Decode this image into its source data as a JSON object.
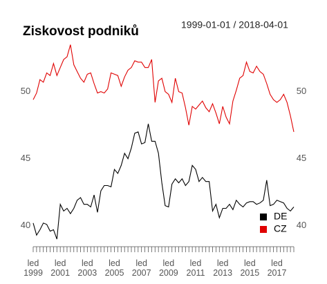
{
  "chart_data": {
    "type": "line",
    "title": "Ziskovost podniků",
    "subtitle": "1999-01-01 / 2018-04-01",
    "categories": [
      "led\n1999",
      null,
      null,
      null,
      null,
      null,
      null,
      null,
      "led\n2001",
      null,
      null,
      null,
      null,
      null,
      null,
      null,
      "led\n2003",
      null,
      null,
      null,
      null,
      null,
      null,
      null,
      "led\n2005",
      null,
      null,
      null,
      null,
      null,
      null,
      null,
      "led\n2007",
      null,
      null,
      null,
      null,
      null,
      null,
      null,
      "led\n2009",
      null,
      null,
      null,
      null,
      null,
      null,
      null,
      "led\n2011",
      null,
      null,
      null,
      null,
      null,
      null,
      null,
      "led\n2013",
      null,
      null,
      null,
      null,
      null,
      null,
      null,
      "led\n2015",
      null,
      null,
      null,
      null,
      null,
      null,
      null,
      "led\n2017",
      null,
      null,
      null,
      null,
      null
    ],
    "series": [
      {
        "name": "DE",
        "color": "#000000",
        "values": [
          40.2,
          39.3,
          39.7,
          40.2,
          40.1,
          39.6,
          39.7,
          39.0,
          41.6,
          41.1,
          41.3,
          40.9,
          41.3,
          41.9,
          42.1,
          41.6,
          41.6,
          41.4,
          42.3,
          41.0,
          42.6,
          43.0,
          43.0,
          42.9,
          44.2,
          43.9,
          44.5,
          45.4,
          45.0,
          45.8,
          46.9,
          47.0,
          46.1,
          46.2,
          47.6,
          46.3,
          46.3,
          45.4,
          43.2,
          41.5,
          41.4,
          43.1,
          43.5,
          43.2,
          43.5,
          43.0,
          43.3,
          44.5,
          44.2,
          43.3,
          43.6,
          43.3,
          43.3,
          41.1,
          41.6,
          40.6,
          41.3,
          41.3,
          41.6,
          41.2,
          41.9,
          41.6,
          41.4,
          41.7,
          41.8,
          41.8,
          41.6,
          41.7,
          41.9,
          43.4,
          41.5,
          41.6,
          41.9,
          41.8,
          41.7,
          41.3,
          41.1,
          41.4
        ]
      },
      {
        "name": "CZ",
        "color": "#e00000",
        "values": [
          49.4,
          49.9,
          50.9,
          50.7,
          51.4,
          51.2,
          52.1,
          51.2,
          51.8,
          52.4,
          52.6,
          53.5,
          52.0,
          51.5,
          51.0,
          50.7,
          51.3,
          51.4,
          50.6,
          49.9,
          50.0,
          49.9,
          50.2,
          51.4,
          51.3,
          51.2,
          50.4,
          51.1,
          51.6,
          51.8,
          52.3,
          52.2,
          52.2,
          51.8,
          51.8,
          52.4,
          49.2,
          50.8,
          51.0,
          50.0,
          49.8,
          49.2,
          51.0,
          50.0,
          49.9,
          48.8,
          47.5,
          48.9,
          48.7,
          49.0,
          49.3,
          48.8,
          48.5,
          49.1,
          48.4,
          47.6,
          48.9,
          48.1,
          47.6,
          49.3,
          50.1,
          51.0,
          51.2,
          52.2,
          51.5,
          51.4,
          51.9,
          51.5,
          51.3,
          50.6,
          49.8,
          49.4,
          49.2,
          49.4,
          49.8,
          49.2,
          48.2,
          47.0
        ]
      }
    ],
    "ylim": [
      38.8,
      54.0
    ],
    "yticks": [
      40,
      45,
      50
    ],
    "grid": false,
    "legend": "bottom-right"
  }
}
